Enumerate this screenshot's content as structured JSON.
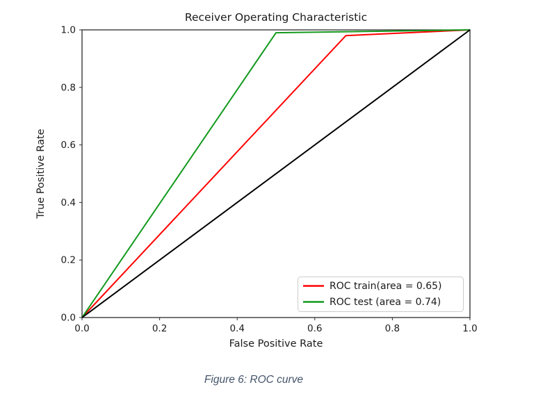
{
  "figure": {
    "caption": "Figure 6: ROC curve",
    "caption_color": "#44546A"
  },
  "chart_data": {
    "type": "line",
    "title": "Receiver Operating Characteristic",
    "xlabel": "False Positive Rate",
    "ylabel": "True Positive Rate",
    "xlim": [
      0.0,
      1.0
    ],
    "ylim": [
      0.0,
      1.0
    ],
    "grid": false,
    "axis_color": "#2b2b2b",
    "text_color": "#1a1a1a",
    "xticks": [
      {
        "v": 0.0,
        "label": "0.0"
      },
      {
        "v": 0.2,
        "label": "0.2"
      },
      {
        "v": 0.4,
        "label": "0.4"
      },
      {
        "v": 0.6,
        "label": "0.6"
      },
      {
        "v": 0.8,
        "label": "0.8"
      },
      {
        "v": 1.0,
        "label": "1.0"
      }
    ],
    "yticks": [
      {
        "v": 0.0,
        "label": "0.0"
      },
      {
        "v": 0.2,
        "label": "0.2"
      },
      {
        "v": 0.4,
        "label": "0.4"
      },
      {
        "v": 0.6,
        "label": "0.6"
      },
      {
        "v": 0.8,
        "label": "0.8"
      },
      {
        "v": 1.0,
        "label": "1.0"
      }
    ],
    "legend": {
      "position": "lower right",
      "border_color": "#cccccc"
    },
    "series": [
      {
        "name": "ROC train(area = 0.65)",
        "color": "#ff0000",
        "in_legend": true,
        "area": 0.65,
        "points": [
          [
            0.0,
            0.0
          ],
          [
            0.68,
            0.98
          ],
          [
            1.0,
            1.0
          ]
        ]
      },
      {
        "name": "ROC test (area = 0.74)",
        "color": "#12991c",
        "in_legend": true,
        "area": 0.74,
        "points": [
          [
            0.0,
            0.0
          ],
          [
            0.5,
            0.99
          ],
          [
            1.0,
            1.0
          ]
        ]
      },
      {
        "name": "chance-diagonal",
        "color": "#000000",
        "in_legend": false,
        "points": [
          [
            0.0,
            0.0
          ],
          [
            1.0,
            1.0
          ]
        ]
      }
    ]
  }
}
